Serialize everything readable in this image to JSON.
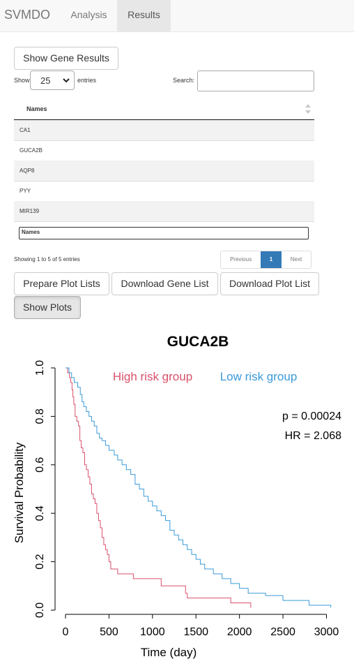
{
  "navbar": {
    "brand": "SVMDO",
    "tabs": [
      {
        "label": "Analysis",
        "active": false
      },
      {
        "label": "Results",
        "active": true
      }
    ]
  },
  "controls": {
    "show_gene_results": "Show Gene Results",
    "length_prefix": "Show",
    "length_value": "25",
    "length_suffix": "entries",
    "search_label": "Search:",
    "search_value": ""
  },
  "table": {
    "column_header": "Names",
    "rows": [
      "CA1",
      "GUCA2B",
      "AQP8",
      "PYY",
      "MIR139"
    ],
    "filter_placeholder": "Names"
  },
  "pagination": {
    "info": "Showing 1 to 5 of 5 entries",
    "previous": "Previous",
    "current_page": "1",
    "next": "Next"
  },
  "buttons": {
    "prepare_plot_lists": "Prepare Plot Lists",
    "download_gene_list": "Download Gene List",
    "download_plot_list": "Download Plot List",
    "show_plots": "Show Plots"
  },
  "chart_data": {
    "type": "line",
    "title": "GUCA2B",
    "xlabel": "Time (day)",
    "ylabel": "Survival Probability",
    "xlim": [
      0,
      3100
    ],
    "ylim": [
      0,
      1
    ],
    "xticks": [
      0,
      500,
      1000,
      1500,
      2000,
      2500,
      3000
    ],
    "yticks": [
      0.0,
      0.2,
      0.4,
      0.6,
      0.8,
      1.0
    ],
    "ytick_labels": [
      "0.0",
      "0.2",
      "0.4",
      "0.6",
      "0.8",
      "1.0"
    ],
    "annotations": [
      "p = 0.00024",
      "HR = 2.068"
    ],
    "legend_position": "top",
    "series": [
      {
        "name": "High risk group",
        "color": "#d9506a",
        "points": [
          [
            0,
            1.0
          ],
          [
            25,
            0.98
          ],
          [
            45,
            0.96
          ],
          [
            60,
            0.94
          ],
          [
            75,
            0.91
          ],
          [
            85,
            0.88
          ],
          [
            95,
            0.85
          ],
          [
            110,
            0.8
          ],
          [
            130,
            0.78
          ],
          [
            150,
            0.76
          ],
          [
            165,
            0.7
          ],
          [
            180,
            0.67
          ],
          [
            200,
            0.65
          ],
          [
            220,
            0.6
          ],
          [
            240,
            0.58
          ],
          [
            260,
            0.55
          ],
          [
            280,
            0.52
          ],
          [
            300,
            0.48
          ],
          [
            320,
            0.46
          ],
          [
            340,
            0.44
          ],
          [
            360,
            0.4
          ],
          [
            380,
            0.37
          ],
          [
            400,
            0.34
          ],
          [
            420,
            0.3
          ],
          [
            440,
            0.27
          ],
          [
            460,
            0.25
          ],
          [
            480,
            0.23
          ],
          [
            500,
            0.2
          ],
          [
            520,
            0.17
          ],
          [
            600,
            0.15
          ],
          [
            780,
            0.13
          ],
          [
            1100,
            0.1
          ],
          [
            1380,
            0.07
          ],
          [
            1400,
            0.05
          ],
          [
            1900,
            0.03
          ],
          [
            2130,
            0.01
          ]
        ]
      },
      {
        "name": "Low risk group",
        "color": "#3a9ad9",
        "points": [
          [
            0,
            1.0
          ],
          [
            40,
            0.98
          ],
          [
            70,
            0.96
          ],
          [
            100,
            0.94
          ],
          [
            140,
            0.92
          ],
          [
            170,
            0.89
          ],
          [
            190,
            0.86
          ],
          [
            210,
            0.84
          ],
          [
            240,
            0.82
          ],
          [
            270,
            0.8
          ],
          [
            300,
            0.78
          ],
          [
            330,
            0.76
          ],
          [
            360,
            0.73
          ],
          [
            390,
            0.71
          ],
          [
            420,
            0.7
          ],
          [
            460,
            0.68
          ],
          [
            500,
            0.66
          ],
          [
            560,
            0.64
          ],
          [
            600,
            0.62
          ],
          [
            650,
            0.6
          ],
          [
            700,
            0.58
          ],
          [
            750,
            0.56
          ],
          [
            800,
            0.52
          ],
          [
            850,
            0.5
          ],
          [
            900,
            0.47
          ],
          [
            950,
            0.45
          ],
          [
            1000,
            0.43
          ],
          [
            1050,
            0.41
          ],
          [
            1100,
            0.39
          ],
          [
            1150,
            0.37
          ],
          [
            1200,
            0.33
          ],
          [
            1250,
            0.31
          ],
          [
            1300,
            0.29
          ],
          [
            1350,
            0.27
          ],
          [
            1400,
            0.25
          ],
          [
            1450,
            0.23
          ],
          [
            1500,
            0.21
          ],
          [
            1550,
            0.19
          ],
          [
            1600,
            0.17
          ],
          [
            1700,
            0.15
          ],
          [
            1800,
            0.13
          ],
          [
            1900,
            0.11
          ],
          [
            2000,
            0.09
          ],
          [
            2100,
            0.07
          ],
          [
            2300,
            0.06
          ],
          [
            2500,
            0.04
          ],
          [
            2800,
            0.02
          ],
          [
            3050,
            0.01
          ]
        ]
      }
    ]
  }
}
